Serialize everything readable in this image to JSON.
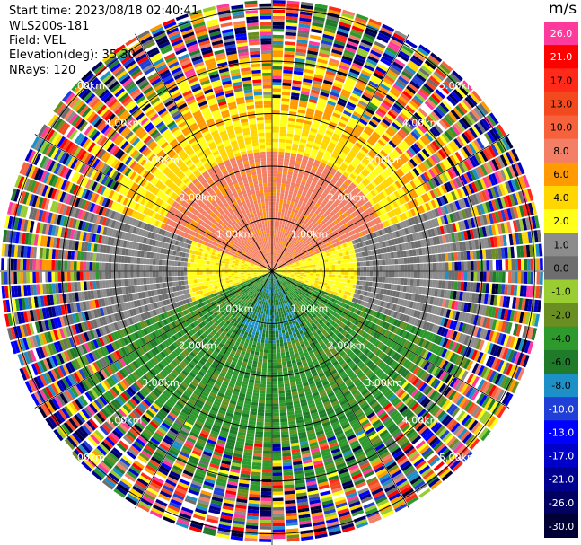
{
  "header": {
    "start_time": "Start time: 2023/08/18 02:40:41",
    "instrument": "WLS200s-181",
    "field": "Field: VEL",
    "elevation": "Elevation(deg): 35.30",
    "nrays": "NRays: 120"
  },
  "colorbar": {
    "unit": "m/s",
    "bins": [
      {
        "label": "26.0",
        "color": "#ff3a9d"
      },
      {
        "label": "21.0",
        "color": "#ff0000"
      },
      {
        "label": "17.0",
        "color": "#ff2a1a"
      },
      {
        "label": "13.0",
        "color": "#f24a1e"
      },
      {
        "label": "10.0",
        "color": "#f7623c"
      },
      {
        "label": "8.0",
        "color": "#f38066"
      },
      {
        "label": "6.0",
        "color": "#ff9a00"
      },
      {
        "label": "4.0",
        "color": "#ffd600"
      },
      {
        "label": "2.0",
        "color": "#ffff1a"
      },
      {
        "label": "1.0",
        "color": "#8c8c8c"
      },
      {
        "label": "0.0",
        "color": "#6e6e6e"
      },
      {
        "label": "-1.0",
        "color": "#9acd32"
      },
      {
        "label": "-2.0",
        "color": "#6b8e23"
      },
      {
        "label": "-4.0",
        "color": "#2e9a2e"
      },
      {
        "label": "-6.0",
        "color": "#1f7a2a"
      },
      {
        "label": "-8.0",
        "color": "#1e90c8"
      },
      {
        "label": "-10.0",
        "color": "#1f3fd6"
      },
      {
        "label": "-13.0",
        "color": "#0000ff"
      },
      {
        "label": "-17.0",
        "color": "#0000c8"
      },
      {
        "label": "-21.0",
        "color": "#000090"
      },
      {
        "label": "-26.0",
        "color": "#000060"
      },
      {
        "label": "-30.0",
        "color": "#000035"
      }
    ]
  },
  "chart_data": {
    "type": "heatmap",
    "projection": "polar (PPI scan)",
    "field": "VEL",
    "unit": "m/s",
    "n_rays": 120,
    "elevation_deg": 35.3,
    "range_rings_km": [
      1.0,
      2.0,
      3.0,
      4.0,
      5.0
    ],
    "ring_label_texts": [
      "1.00km",
      "2.00km",
      "3.00km",
      "4.00km",
      "5.00km"
    ],
    "spoke_angles_deg": [
      0,
      30,
      60,
      90,
      120,
      150,
      180,
      210,
      240,
      270,
      300,
      330
    ],
    "regions": [
      {
        "sector": "north",
        "range_km": [
          0,
          2.5
        ],
        "velocity_ms": [
          4,
          8
        ],
        "description_color": "salmon core"
      },
      {
        "sector": "north",
        "range_km": [
          2.5,
          3.5
        ],
        "velocity_ms": [
          2,
          6
        ],
        "description_color": "yellow-orange"
      },
      {
        "sector": "east-west band",
        "range_km": [
          0,
          3
        ],
        "velocity_ms": [
          0,
          2
        ],
        "description_color": "yellow / grey"
      },
      {
        "sector": "south",
        "range_km": [
          0,
          3.5
        ],
        "velocity_ms": [
          -8,
          -2
        ],
        "description_color": "green / teal"
      },
      {
        "sector": "all",
        "range_km": [
          3.5,
          5.5
        ],
        "velocity_ms": [
          -30,
          26
        ],
        "description_color": "noise (random)"
      }
    ],
    "grid": true
  }
}
